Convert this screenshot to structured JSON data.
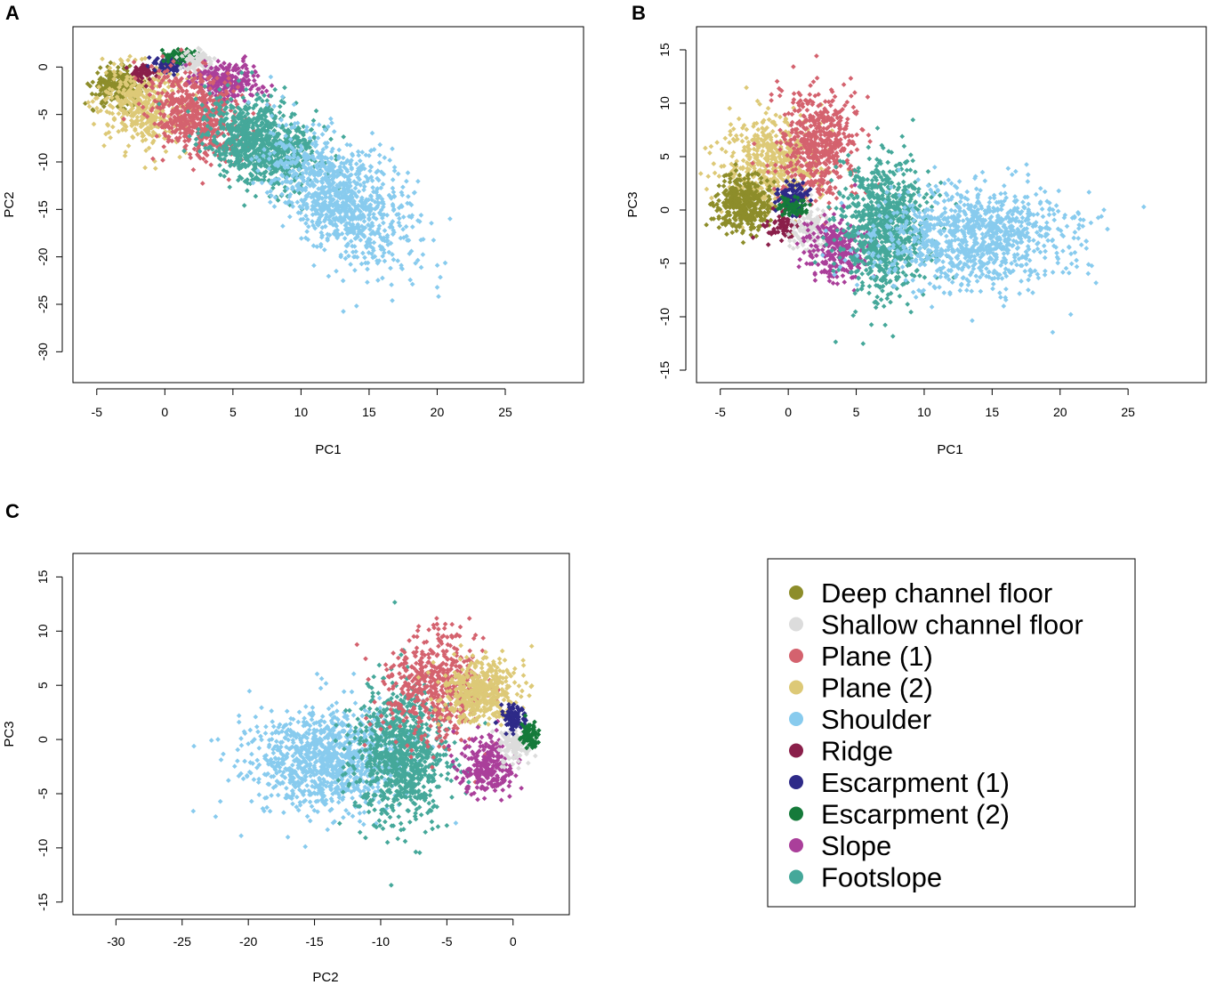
{
  "classes": [
    {
      "name": "Deep channel floor",
      "color": "#8d8d2a"
    },
    {
      "name": "Shallow channel floor",
      "color": "#dcdcdc"
    },
    {
      "name": "Plane (1)",
      "color": "#d4626e"
    },
    {
      "name": "Plane (2)",
      "color": "#ddc977"
    },
    {
      "name": "Shoulder",
      "color": "#88cbee"
    },
    {
      "name": "Ridge",
      "color": "#8a1f4a"
    },
    {
      "name": "Escarpment (1)",
      "color": "#2e2a88"
    },
    {
      "name": "Escarpment (2)",
      "color": "#157a3a"
    },
    {
      "name": "Slope",
      "color": "#aa3f9a"
    },
    {
      "name": "Footslope",
      "color": "#45a89a"
    }
  ],
  "chart_data": [
    {
      "panel": "A",
      "type": "scatter",
      "title": "",
      "xlabel": "PC1",
      "ylabel": "PC2",
      "xlim": [
        -6,
        30
      ],
      "ylim": [
        -32.5,
        3.5
      ],
      "xticks": [
        -5,
        0,
        5,
        10,
        15,
        20,
        25
      ],
      "yticks": [
        0,
        -5,
        -10,
        -15,
        -20,
        -25,
        -30
      ],
      "tick_labels_x": [
        "-5",
        "0",
        "5",
        "10",
        "15",
        "20",
        "25"
      ],
      "tick_labels_y": [
        "0",
        "-5",
        "-10",
        "-15",
        "-20",
        "-25",
        "-30"
      ],
      "series": [
        {
          "name": "Deep channel floor",
          "center": [
            -3.5,
            -2
          ],
          "spread": [
            0.9,
            0.9
          ],
          "tilt": 0,
          "n": 260
        },
        {
          "name": "Plane (2)",
          "center": [
            -1.5,
            -4
          ],
          "spread": [
            1.6,
            2.2
          ],
          "tilt": 0.25,
          "n": 420
        },
        {
          "name": "Ridge",
          "center": [
            -1.5,
            -0.5
          ],
          "spread": [
            0.45,
            0.45
          ],
          "tilt": 0,
          "n": 60
        },
        {
          "name": "Escarpment (1)",
          "center": [
            0.5,
            0.3
          ],
          "spread": [
            0.55,
            0.45
          ],
          "tilt": 0,
          "n": 80
        },
        {
          "name": "Escarpment (2)",
          "center": [
            1.3,
            1.2
          ],
          "spread": [
            0.6,
            0.35
          ],
          "tilt": 0,
          "n": 70
        },
        {
          "name": "Shallow channel floor",
          "center": [
            2.5,
            0.5
          ],
          "spread": [
            0.6,
            0.6
          ],
          "tilt": 0,
          "n": 90
        },
        {
          "name": "Slope",
          "center": [
            4.5,
            -1.5
          ],
          "spread": [
            1.3,
            1.0
          ],
          "tilt": 0,
          "n": 260
        },
        {
          "name": "Plane (1)",
          "center": [
            2.3,
            -5
          ],
          "spread": [
            1.7,
            2.2
          ],
          "tilt": 0.4,
          "n": 560
        },
        {
          "name": "Footslope",
          "center": [
            7,
            -8
          ],
          "spread": [
            2.0,
            2.2
          ],
          "tilt": 0.4,
          "n": 820
        },
        {
          "name": "Shoulder",
          "center": [
            13,
            -14
          ],
          "spread": [
            2.6,
            3.0
          ],
          "tilt": 0.8,
          "n": 950
        }
      ]
    },
    {
      "panel": "B",
      "type": "scatter",
      "title": "",
      "xlabel": "PC1",
      "ylabel": "PC3",
      "xlim": [
        -6,
        30
      ],
      "ylim": [
        -15.5,
        16.5
      ],
      "xticks": [
        -5,
        0,
        5,
        10,
        15,
        20,
        25
      ],
      "yticks": [
        15,
        10,
        5,
        0,
        -5,
        -10,
        -15
      ],
      "tick_labels_x": [
        "-5",
        "0",
        "5",
        "10",
        "15",
        "20",
        "25"
      ],
      "tick_labels_y": [
        "15",
        "10",
        "5",
        "0",
        "-5",
        "-10",
        "-15"
      ],
      "series": [
        {
          "name": "Plane (2)",
          "center": [
            -1.2,
            4.5
          ],
          "spread": [
            1.8,
            2.2
          ],
          "tilt": 0,
          "n": 520
        },
        {
          "name": "Plane (1)",
          "center": [
            2.2,
            6
          ],
          "spread": [
            1.4,
            2.6
          ],
          "tilt": 0,
          "n": 520
        },
        {
          "name": "Deep channel floor",
          "center": [
            -3.3,
            0.5
          ],
          "spread": [
            1.0,
            1.3
          ],
          "tilt": 0,
          "n": 380
        },
        {
          "name": "Ridge",
          "center": [
            -0.5,
            -1.5
          ],
          "spread": [
            0.7,
            0.7
          ],
          "tilt": 0,
          "n": 70
        },
        {
          "name": "Shallow channel floor",
          "center": [
            1.5,
            -2
          ],
          "spread": [
            0.7,
            1.0
          ],
          "tilt": 0,
          "n": 130
        },
        {
          "name": "Slope",
          "center": [
            3.5,
            -3.5
          ],
          "spread": [
            1.1,
            1.4
          ],
          "tilt": 0,
          "n": 260
        },
        {
          "name": "Escarpment (1)",
          "center": [
            0.3,
            1.3
          ],
          "spread": [
            0.6,
            0.7
          ],
          "tilt": 0,
          "n": 100
        },
        {
          "name": "Escarpment (2)",
          "center": [
            0.3,
            0.3
          ],
          "spread": [
            0.5,
            0.5
          ],
          "tilt": 0,
          "n": 70
        },
        {
          "name": "Footslope",
          "center": [
            7,
            -1.5
          ],
          "spread": [
            1.6,
            3.2
          ],
          "tilt": 0,
          "n": 850
        },
        {
          "name": "Shoulder",
          "center": [
            13.5,
            -2.5
          ],
          "spread": [
            3.6,
            2.4
          ],
          "tilt": 0,
          "n": 1000
        }
      ]
    },
    {
      "panel": "C",
      "type": "scatter",
      "title": "",
      "xlabel": "PC2",
      "ylabel": "PC3",
      "xlim": [
        -32.5,
        3.5
      ],
      "ylim": [
        -15.5,
        16.5
      ],
      "xticks": [
        -30,
        -25,
        -20,
        -15,
        -10,
        -5,
        0
      ],
      "yticks": [
        15,
        10,
        5,
        0,
        -5,
        -10,
        -15
      ],
      "tick_labels_x": [
        "-30",
        "-25",
        "-20",
        "-15",
        "-10",
        "-5",
        "0"
      ],
      "tick_labels_y": [
        "15",
        "10",
        "5",
        "0",
        "-5",
        "-10",
        "-15"
      ],
      "series": [
        {
          "name": "Shoulder",
          "center": [
            -14,
            -2
          ],
          "spread": [
            3.0,
            2.4
          ],
          "tilt": 0,
          "n": 1000
        },
        {
          "name": "Footslope",
          "center": [
            -8.5,
            -1.5
          ],
          "spread": [
            1.8,
            3.2
          ],
          "tilt": 0,
          "n": 850
        },
        {
          "name": "Plane (1)",
          "center": [
            -6,
            5
          ],
          "spread": [
            1.8,
            2.4
          ],
          "tilt": 0,
          "n": 520
        },
        {
          "name": "Plane (2)",
          "center": [
            -2.5,
            4.5
          ],
          "spread": [
            1.5,
            1.6
          ],
          "tilt": 0,
          "n": 420
        },
        {
          "name": "Slope",
          "center": [
            -2,
            -2.5
          ],
          "spread": [
            1.1,
            1.4
          ],
          "tilt": 0,
          "n": 260
        },
        {
          "name": "Shallow channel floor",
          "center": [
            0,
            -0.5
          ],
          "spread": [
            0.55,
            0.9
          ],
          "tilt": 0,
          "n": 120
        },
        {
          "name": "Escarpment (1)",
          "center": [
            0,
            2
          ],
          "spread": [
            0.45,
            0.6
          ],
          "tilt": 0,
          "n": 90
        },
        {
          "name": "Escarpment (2)",
          "center": [
            1.2,
            0.5
          ],
          "spread": [
            0.35,
            0.6
          ],
          "tilt": 0,
          "n": 70
        }
      ]
    }
  ]
}
